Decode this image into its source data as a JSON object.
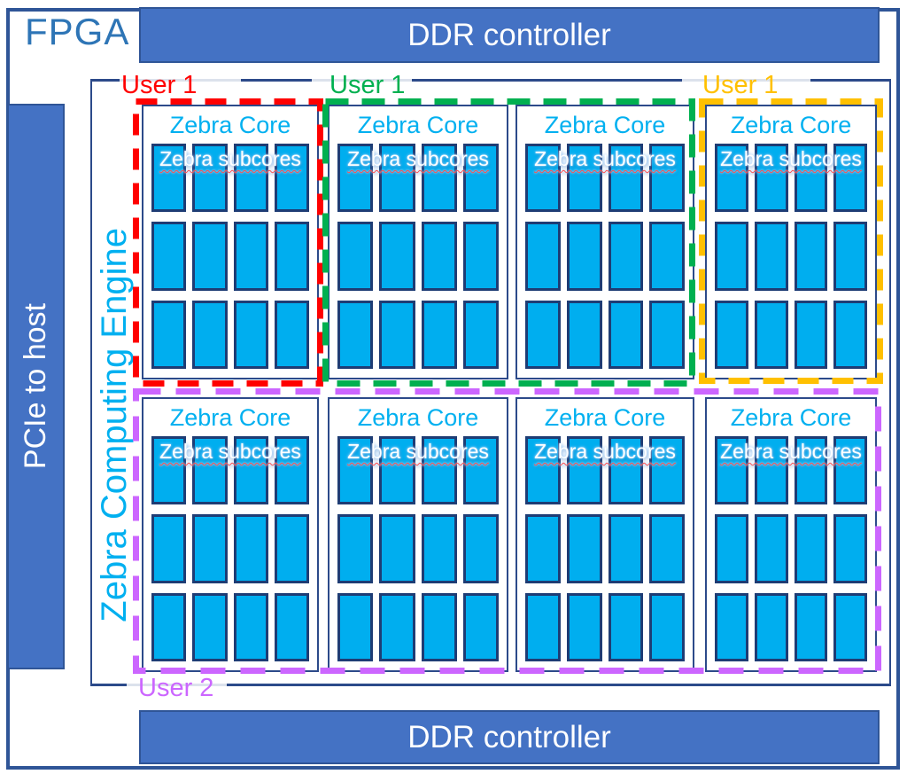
{
  "fpga": {
    "label": "FPGA"
  },
  "ddr_top": {
    "label": "DDR controller"
  },
  "ddr_bottom": {
    "label": "DDR controller"
  },
  "pcie": {
    "label": "PCIe to host"
  },
  "engine": {
    "label": "Zebra Computing Engine"
  },
  "users": [
    {
      "label": "User 1",
      "color": "#FF0000",
      "scope": "core 1, top row"
    },
    {
      "label": "User 1",
      "color": "#00B050",
      "scope": "cores 2-3, top row"
    },
    {
      "label": "User 1",
      "color": "#FFC000",
      "scope": "core 4, top row"
    },
    {
      "label": "User 2",
      "color": "#CC66FF",
      "scope": "cores 5-8, bottom row"
    }
  ],
  "cores": [
    {
      "title": "Zebra Core",
      "subcores_label": "Zebra subcores"
    },
    {
      "title": "Zebra Core",
      "subcores_label": "Zebra subcores"
    },
    {
      "title": "Zebra Core",
      "subcores_label": "Zebra subcores"
    },
    {
      "title": "Zebra Core",
      "subcores_label": "Zebra subcores"
    },
    {
      "title": "Zebra Core",
      "subcores_label": "Zebra subcores"
    },
    {
      "title": "Zebra Core",
      "subcores_label": "Zebra subcores"
    },
    {
      "title": "Zebra Core",
      "subcores_label": "Zebra subcores"
    },
    {
      "title": "Zebra Core",
      "subcores_label": "Zebra subcores"
    }
  ],
  "subcore_grid": {
    "rows": 3,
    "cols": 4
  },
  "colors": {
    "bar_fill": "#4472C4",
    "bar_border": "#2F5597",
    "subcore_fill": "#00AEEF",
    "subcore_border": "#1E3C74",
    "outline_navy": "#2C4A8A",
    "cyan_text": "#00B0F0",
    "fpga_text": "#2E75B6",
    "leader_line": "#DCE2EC"
  }
}
